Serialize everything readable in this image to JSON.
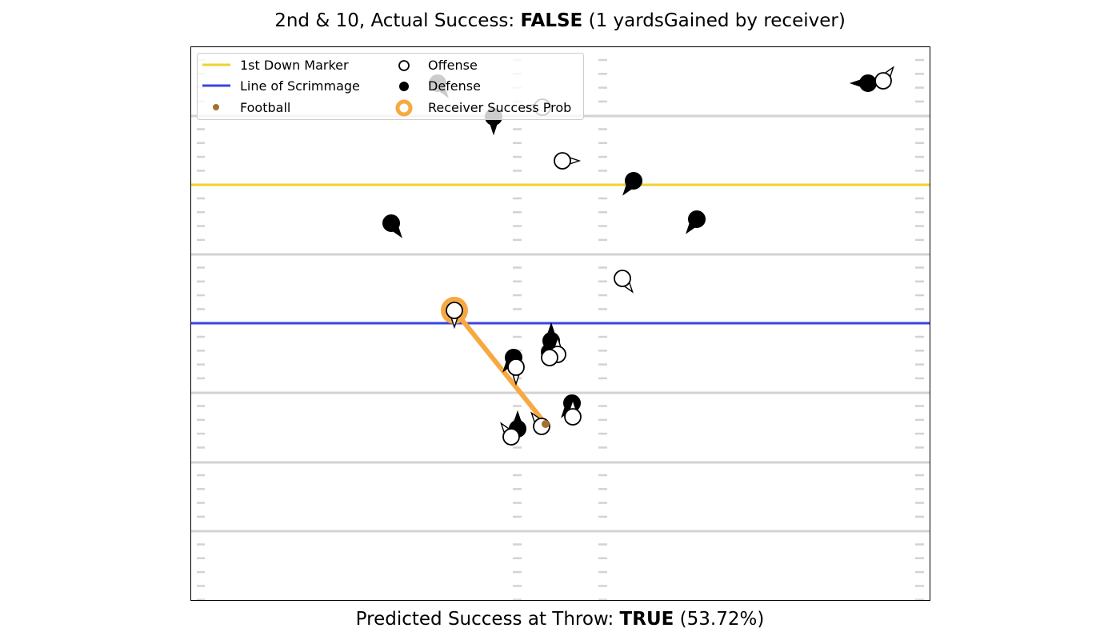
{
  "header": {
    "prefix": "2nd & 10, Actual Success: ",
    "verdict": "FALSE",
    "suffix": " (1 yardsGained by receiver)"
  },
  "footer": {
    "prefix": "Predicted Success at Throw: ",
    "verdict": "TRUE",
    "suffix": " (53.72%)"
  },
  "legend": {
    "first_down": "1st Down Marker",
    "line_of_scrimmage": "Line of Scrimmage",
    "football": "Football",
    "offense": "Offense",
    "defense": "Defense",
    "receiver_prob": "Receiver Success Prob"
  },
  "colors": {
    "first_down": "#f0d22c",
    "line_of_scrimmage": "#3a44e0",
    "football": "#a5712f",
    "receiver_prob": "#f8a840",
    "yard_line": "#d3d3d3",
    "hash": "#d3d3d3"
  },
  "diagram_data": {
    "type": "football-play",
    "down": 2,
    "distance": 10,
    "actual_success": false,
    "yards_gained": 1,
    "predicted_success": true,
    "predicted_probability_pct": 53.72,
    "offense": [
      {
        "id": "o1",
        "dir": "up-right"
      },
      {
        "id": "o2",
        "dir": "left"
      },
      {
        "id": "o3",
        "dir": "right"
      },
      {
        "id": "o4",
        "dir": "down-right"
      },
      {
        "id": "o5",
        "dir": "down",
        "targeted": true
      },
      {
        "id": "o6",
        "dir": "up"
      },
      {
        "id": "o7",
        "dir": "down"
      },
      {
        "id": "o8",
        "dir": "up"
      },
      {
        "id": "o9",
        "dir": "up-left"
      },
      {
        "id": "o10",
        "dir": "up-left"
      },
      {
        "id": "o11",
        "dir": "none"
      }
    ],
    "defense": [
      {
        "id": "d1",
        "dir": "left"
      },
      {
        "id": "d2",
        "dir": "down-right"
      },
      {
        "id": "d3",
        "dir": "down"
      },
      {
        "id": "d4",
        "dir": "down-left"
      },
      {
        "id": "d5",
        "dir": "down-left"
      },
      {
        "id": "d6",
        "dir": "down-right"
      },
      {
        "id": "d7",
        "dir": "up"
      },
      {
        "id": "d8",
        "dir": "down-left"
      },
      {
        "id": "d9",
        "dir": "none"
      },
      {
        "id": "d10",
        "dir": "down-left"
      },
      {
        "id": "d11",
        "dir": "up"
      }
    ]
  }
}
